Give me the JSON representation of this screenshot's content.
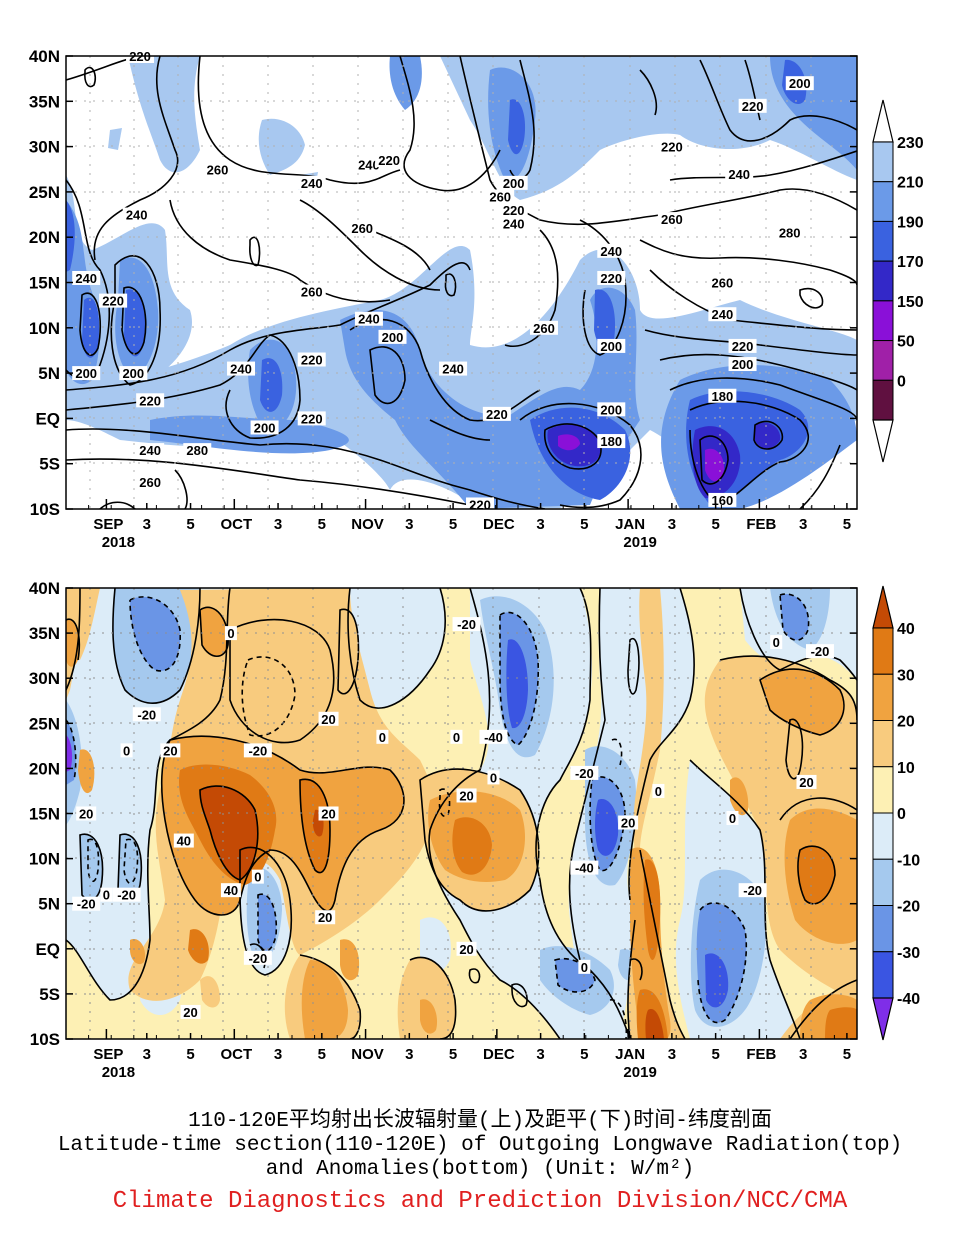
{
  "chart_data": [
    {
      "type": "heatmap",
      "panel": "top",
      "y_ticks": [
        "40N",
        "35N",
        "30N",
        "25N",
        "20N",
        "15N",
        "10N",
        "5N",
        "EQ",
        "5S",
        "10S"
      ],
      "x_ticks": [
        {
          "label": "SEP",
          "sub": "2018"
        },
        {
          "label": "3"
        },
        {
          "label": "5"
        },
        {
          "label": "OCT"
        },
        {
          "label": "3"
        },
        {
          "label": "5"
        },
        {
          "label": "NOV"
        },
        {
          "label": "3"
        },
        {
          "label": "5"
        },
        {
          "label": "DEC"
        },
        {
          "label": "3"
        },
        {
          "label": "5"
        },
        {
          "label": "JAN",
          "sub": "2019"
        },
        {
          "label": "3"
        },
        {
          "label": "5"
        },
        {
          "label": "FEB"
        },
        {
          "label": "3"
        },
        {
          "label": "5"
        }
      ],
      "colorbar": {
        "labels": [
          "230",
          "210",
          "190",
          "170",
          "150",
          "50",
          "0"
        ],
        "colors": [
          "#a8c8f0",
          "#6b9ae8",
          "#3a62e0",
          "#3328c8",
          "#8a10d8",
          "#a020a8",
          "#601040"
        ]
      },
      "contour_labels": [
        {
          "text": "220",
          "lat": 40,
          "t": 2.2
        },
        {
          "text": "260",
          "lat": 27.5,
          "t": 4.5
        },
        {
          "text": "240",
          "lat": 22.5,
          "t": 2.1
        },
        {
          "text": "240",
          "lat": 26,
          "t": 7.3
        },
        {
          "text": "240",
          "lat": 28,
          "t": 9.0
        },
        {
          "text": "220",
          "lat": 28.5,
          "t": 9.6
        },
        {
          "text": "260",
          "lat": 21,
          "t": 8.8
        },
        {
          "text": "260",
          "lat": 14,
          "t": 7.3
        },
        {
          "text": "240",
          "lat": 11,
          "t": 9.0
        },
        {
          "text": "200",
          "lat": 9,
          "t": 9.7
        },
        {
          "text": "240",
          "lat": 15.5,
          "t": 0.6
        },
        {
          "text": "220",
          "lat": 13,
          "t": 1.4
        },
        {
          "text": "200",
          "lat": 5,
          "t": 0.6
        },
        {
          "text": "200",
          "lat": 5,
          "t": 2.0
        },
        {
          "text": "220",
          "lat": 2,
          "t": 2.5
        },
        {
          "text": "240",
          "lat": 5.5,
          "t": 5.2
        },
        {
          "text": "220",
          "lat": 6.5,
          "t": 7.3
        },
        {
          "text": "200",
          "lat": -1,
          "t": 5.9
        },
        {
          "text": "220",
          "lat": 0,
          "t": 7.3
        },
        {
          "text": "240",
          "lat": -3.5,
          "t": 2.5
        },
        {
          "text": "280",
          "lat": -3.5,
          "t": 3.9
        },
        {
          "text": "260",
          "lat": -7,
          "t": 2.5
        },
        {
          "text": "240",
          "lat": 5.5,
          "t": 11.5
        },
        {
          "text": "220",
          "lat": 0.5,
          "t": 12.8
        },
        {
          "text": "220",
          "lat": -9.5,
          "t": 12.3
        },
        {
          "text": "260",
          "lat": 10,
          "t": 14.2
        },
        {
          "text": "200",
          "lat": 26,
          "t": 13.3
        },
        {
          "text": "260",
          "lat": 24.5,
          "t": 12.9
        },
        {
          "text": "220",
          "lat": 23,
          "t": 13.3
        },
        {
          "text": "240",
          "lat": 21.5,
          "t": 13.3
        },
        {
          "text": "240",
          "lat": 18.5,
          "t": 16.2
        },
        {
          "text": "220",
          "lat": 15.5,
          "t": 16.2
        },
        {
          "text": "200",
          "lat": 8,
          "t": 16.2
        },
        {
          "text": "200",
          "lat": 1,
          "t": 16.2
        },
        {
          "text": "180",
          "lat": -2.5,
          "t": 16.2
        },
        {
          "text": "220",
          "lat": 30,
          "t": 18.0
        },
        {
          "text": "260",
          "lat": 22,
          "t": 18.0
        },
        {
          "text": "260",
          "lat": 15,
          "t": 19.5
        },
        {
          "text": "240",
          "lat": 11.5,
          "t": 19.5
        },
        {
          "text": "220",
          "lat": 8,
          "t": 20.1
        },
        {
          "text": "200",
          "lat": 6,
          "t": 20.1
        },
        {
          "text": "180",
          "lat": 2.5,
          "t": 19.5
        },
        {
          "text": "160",
          "lat": -9,
          "t": 19.5
        },
        {
          "text": "240",
          "lat": 27,
          "t": 20.0
        },
        {
          "text": "220",
          "lat": 34.5,
          "t": 20.4
        },
        {
          "text": "200",
          "lat": 37,
          "t": 21.8
        },
        {
          "text": "280",
          "lat": 20.5,
          "t": 21.5
        }
      ]
    },
    {
      "type": "heatmap",
      "panel": "bottom",
      "y_ticks": [
        "40N",
        "35N",
        "30N",
        "25N",
        "20N",
        "15N",
        "10N",
        "5N",
        "EQ",
        "5S",
        "10S"
      ],
      "x_ticks": [
        {
          "label": "SEP",
          "sub": "2018"
        },
        {
          "label": "3"
        },
        {
          "label": "5"
        },
        {
          "label": "OCT"
        },
        {
          "label": "3"
        },
        {
          "label": "5"
        },
        {
          "label": "NOV"
        },
        {
          "label": "3"
        },
        {
          "label": "5"
        },
        {
          "label": "DEC"
        },
        {
          "label": "3"
        },
        {
          "label": "5"
        },
        {
          "label": "JAN",
          "sub": "2019"
        },
        {
          "label": "3"
        },
        {
          "label": "5"
        },
        {
          "label": "FEB"
        },
        {
          "label": "3"
        },
        {
          "label": "5"
        }
      ],
      "colorbar": {
        "labels": [
          "40",
          "30",
          "20",
          "10",
          "0",
          "-10",
          "-20",
          "-30",
          "-40"
        ],
        "colors": [
          "#c44a05",
          "#e07a15",
          "#f0a340",
          "#f8cb7e",
          "#fdf0b4",
          "#dcecf8",
          "#a5c9ee",
          "#6a95e6",
          "#3a55e2",
          "#7f2ee8"
        ]
      },
      "contour_labels": [
        {
          "text": "0",
          "lat": 35,
          "t": 4.9
        },
        {
          "text": "-20",
          "lat": 26,
          "t": 2.4
        },
        {
          "text": "0",
          "lat": 22,
          "t": 1.8
        },
        {
          "text": "20",
          "lat": 22,
          "t": 3.1
        },
        {
          "text": "-20",
          "lat": 22,
          "t": 5.7
        },
        {
          "text": "20",
          "lat": 25.5,
          "t": 7.8
        },
        {
          "text": "0",
          "lat": 23.5,
          "t": 9.4
        },
        {
          "text": "20",
          "lat": 15,
          "t": 0.6
        },
        {
          "text": "0",
          "lat": 6,
          "t": 1.2
        },
        {
          "text": "-20",
          "lat": 5,
          "t": 0.6
        },
        {
          "text": "-20",
          "lat": 6,
          "t": 1.8
        },
        {
          "text": "40",
          "lat": 12,
          "t": 3.5
        },
        {
          "text": "40",
          "lat": 6.5,
          "t": 4.9
        },
        {
          "text": "0",
          "lat": 8,
          "t": 5.7
        },
        {
          "text": "-20",
          "lat": -1,
          "t": 5.7
        },
        {
          "text": "20",
          "lat": 15,
          "t": 7.8
        },
        {
          "text": "20",
          "lat": 3.5,
          "t": 7.7
        },
        {
          "text": "20",
          "lat": -7,
          "t": 3.7
        },
        {
          "text": "-20",
          "lat": 36,
          "t": 11.9
        },
        {
          "text": "0",
          "lat": 23.5,
          "t": 11.6
        },
        {
          "text": "-40",
          "lat": 23.5,
          "t": 12.7
        },
        {
          "text": "0",
          "lat": 19,
          "t": 12.7
        },
        {
          "text": "20",
          "lat": 17,
          "t": 11.9
        },
        {
          "text": "20",
          "lat": 0,
          "t": 11.9
        },
        {
          "text": "-20",
          "lat": 19.5,
          "t": 15.4
        },
        {
          "text": "-40",
          "lat": 9,
          "t": 15.4
        },
        {
          "text": "20",
          "lat": 14,
          "t": 16.7
        },
        {
          "text": "0",
          "lat": -2,
          "t": 15.4
        },
        {
          "text": "0",
          "lat": 17.5,
          "t": 17.6
        },
        {
          "text": "0",
          "lat": 14.5,
          "t": 19.8
        },
        {
          "text": "-20",
          "lat": 6.5,
          "t": 20.4
        },
        {
          "text": "0",
          "lat": 34,
          "t": 21.1
        },
        {
          "text": "-20",
          "lat": 33,
          "t": 22.4
        },
        {
          "text": "20",
          "lat": 18.5,
          "t": 22.0
        }
      ]
    }
  ],
  "caption": {
    "line1": "110-120E平均射出长波辐射量(上)及距平(下)时间-纬度剖面",
    "line2": "Latitude-time section(110-120E) of Outgoing Longwave Radiation(top)",
    "line3": "and Anomalies(bottom) (Unit: W/m²)",
    "credit": "Climate Diagnostics and Prediction Division/NCC/CMA",
    "credit_color": "#e02020"
  }
}
